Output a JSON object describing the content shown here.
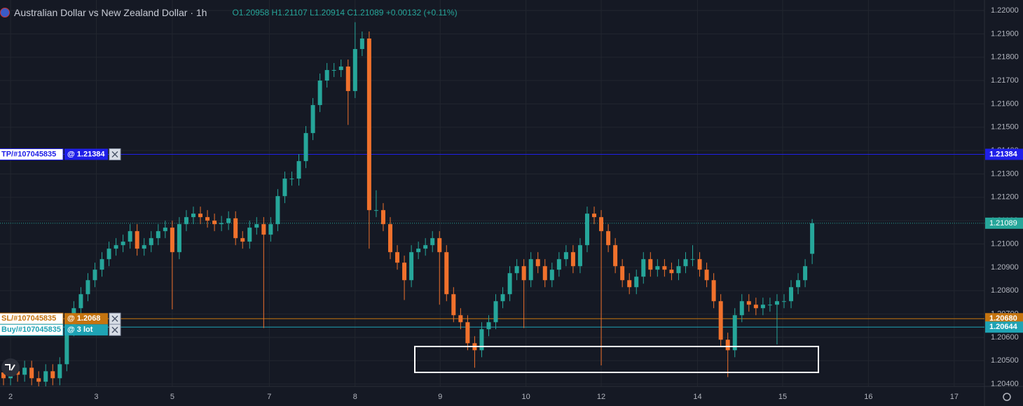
{
  "header": {
    "title": "Australian Dollar vs New Zealand Dollar · 1h",
    "ohlc": "O1.20958 H1.21107 L1.20914 C1.21089 +0.00132 (+0.11%)"
  },
  "chart_data": {
    "type": "candlestick",
    "open": [
      1.2045,
      1.20425,
      1.20455,
      1.2044,
      1.2047,
      1.20425,
      1.2041,
      1.20455,
      1.20425,
      1.20485,
      1.20635,
      1.20725,
      1.20785,
      1.20845,
      1.2089,
      1.20935,
      1.2098,
      1.20995,
      1.2101,
      1.21055,
      1.2098,
      1.20995,
      1.21025,
      1.21055,
      1.2107,
      1.20965,
      1.21085,
      1.21115,
      1.2113,
      1.21115,
      1.211,
      1.21085,
      1.2109,
      1.2111,
      1.21025,
      1.2101,
      1.2107,
      1.21085,
      1.2104,
      1.21085,
      1.21205,
      1.2128,
      1.2128,
      1.21355,
      1.21475,
      1.21595,
      1.217,
      1.21745,
      1.21745,
      1.2176,
      1.21655,
      1.21835,
      1.2188,
      1.21145,
      1.21145,
      1.21085,
      1.20965,
      1.2092,
      1.20845,
      1.20965,
      1.2098,
      1.20995,
      1.21025,
      1.20965,
      1.20785,
      1.20695,
      1.20665,
      1.20575,
      1.20545,
      1.20635,
      1.20665,
      1.20755,
      1.20785,
      1.20875,
      1.20905,
      1.20845,
      1.20935,
      1.20905,
      1.20845,
      1.2089,
      1.20935,
      1.20965,
      1.20905,
      1.20995,
      1.2113,
      1.21115,
      1.21055,
      1.20995,
      1.20905,
      1.20845,
      1.20815,
      1.2086,
      1.20935,
      1.2089,
      1.20905,
      1.2089,
      1.20875,
      1.20905,
      1.20935,
      1.20935,
      1.2089,
      1.20845,
      1.20755,
      1.2059,
      1.20545,
      1.20695,
      1.20755,
      1.2074,
      1.20725,
      1.2074,
      1.2074,
      1.20755,
      1.20755,
      1.20815,
      1.20845,
      1.20958
    ],
    "high": [
      1.2048,
      1.20485,
      1.20485,
      1.205,
      1.205,
      1.20455,
      1.20485,
      1.20485,
      1.20515,
      1.20665,
      1.20755,
      1.20815,
      1.20875,
      1.2092,
      1.20965,
      1.2101,
      1.21025,
      1.2104,
      1.21085,
      1.21085,
      1.21025,
      1.21055,
      1.21085,
      1.211,
      1.211,
      1.21115,
      1.21145,
      1.2116,
      1.2116,
      1.21145,
      1.2113,
      1.2112,
      1.2114,
      1.2114,
      1.21055,
      1.211,
      1.21115,
      1.21115,
      1.21115,
      1.21235,
      1.2131,
      1.2131,
      1.21385,
      1.21505,
      1.21625,
      1.2173,
      1.21775,
      1.21775,
      1.2179,
      1.2179,
      1.2195,
      1.2191,
      1.2191,
      1.2123,
      1.21175,
      1.21115,
      1.20995,
      1.2095,
      1.20995,
      1.2101,
      1.21025,
      1.21055,
      1.21055,
      1.20995,
      1.20815,
      1.20725,
      1.20695,
      1.20605,
      1.20665,
      1.20695,
      1.20785,
      1.20815,
      1.20905,
      1.20935,
      1.20935,
      1.20965,
      1.20965,
      1.20935,
      1.2092,
      1.20965,
      1.20995,
      1.20995,
      1.21025,
      1.2116,
      1.2116,
      1.21145,
      1.21085,
      1.21025,
      1.20935,
      1.20875,
      1.2089,
      1.20965,
      1.20965,
      1.20935,
      1.20935,
      1.2092,
      1.20935,
      1.20965,
      1.20995,
      1.20965,
      1.2092,
      1.20875,
      1.20785,
      1.2062,
      1.20725,
      1.20785,
      1.20785,
      1.2077,
      1.2077,
      1.2077,
      1.20785,
      1.20785,
      1.20845,
      1.20875,
      1.20935,
      1.21107
    ],
    "low": [
      1.20395,
      1.20395,
      1.2041,
      1.2041,
      1.20395,
      1.2039,
      1.2039,
      1.20395,
      1.20395,
      1.20455,
      1.20605,
      1.20695,
      1.20755,
      1.20815,
      1.2086,
      1.20905,
      1.2095,
      1.20965,
      1.2098,
      1.2095,
      1.2095,
      1.20965,
      1.20995,
      1.21025,
      1.2072,
      1.20935,
      1.21055,
      1.21085,
      1.21085,
      1.2107,
      1.21055,
      1.21055,
      1.2106,
      1.20995,
      1.2098,
      1.2098,
      1.2104,
      1.2064,
      1.2101,
      1.21055,
      1.21175,
      1.2125,
      1.2125,
      1.21325,
      1.21445,
      1.21565,
      1.2167,
      1.21715,
      1.21715,
      1.2151,
      1.21625,
      1.21805,
      1.2098,
      1.21115,
      1.21055,
      1.20935,
      1.2089,
      1.2076,
      1.20815,
      1.20935,
      1.2095,
      1.20965,
      1.2074,
      1.20755,
      1.20665,
      1.20635,
      1.20545,
      1.2047,
      1.20515,
      1.20605,
      1.20635,
      1.20725,
      1.20755,
      1.20845,
      1.2064,
      1.20815,
      1.20875,
      1.20815,
      1.20815,
      1.2086,
      1.20905,
      1.20875,
      1.20875,
      1.20965,
      1.21085,
      1.2048,
      1.20965,
      1.20875,
      1.20815,
      1.20785,
      1.20785,
      1.2083,
      1.2086,
      1.2086,
      1.2086,
      1.20845,
      1.20845,
      1.20875,
      1.20905,
      1.2086,
      1.20815,
      1.20725,
      1.2056,
      1.2043,
      1.20515,
      1.20665,
      1.2071,
      1.20695,
      1.20695,
      1.2071,
      1.2057,
      1.20725,
      1.20725,
      1.20785,
      1.20815,
      1.20914
    ],
    "close": [
      1.20425,
      1.20455,
      1.2044,
      1.2047,
      1.20425,
      1.2041,
      1.20455,
      1.20425,
      1.20485,
      1.20635,
      1.20725,
      1.20785,
      1.20845,
      1.2089,
      1.20935,
      1.2098,
      1.20995,
      1.2101,
      1.21055,
      1.2098,
      1.20995,
      1.21025,
      1.21055,
      1.2107,
      1.20965,
      1.21085,
      1.21115,
      1.2113,
      1.21115,
      1.211,
      1.21085,
      1.2109,
      1.2111,
      1.21025,
      1.2101,
      1.2107,
      1.21085,
      1.2104,
      1.21085,
      1.21205,
      1.2128,
      1.2128,
      1.21355,
      1.21475,
      1.21595,
      1.217,
      1.21745,
      1.21745,
      1.2176,
      1.21655,
      1.21835,
      1.2188,
      1.21145,
      1.21145,
      1.21085,
      1.20965,
      1.2092,
      1.20845,
      1.20965,
      1.2098,
      1.20995,
      1.21025,
      1.20965,
      1.20785,
      1.20695,
      1.20665,
      1.20575,
      1.20545,
      1.20635,
      1.20665,
      1.20755,
      1.20785,
      1.20875,
      1.20905,
      1.20845,
      1.20935,
      1.20905,
      1.20845,
      1.2089,
      1.20935,
      1.20965,
      1.20905,
      1.20995,
      1.2113,
      1.21115,
      1.21055,
      1.20995,
      1.20905,
      1.20845,
      1.20815,
      1.2086,
      1.20935,
      1.2089,
      1.20905,
      1.2089,
      1.20875,
      1.20905,
      1.20935,
      1.20935,
      1.2089,
      1.20845,
      1.20755,
      1.2059,
      1.20545,
      1.20695,
      1.20755,
      1.2074,
      1.20725,
      1.2074,
      1.2074,
      1.20755,
      1.20755,
      1.20815,
      1.20845,
      1.20905,
      1.21089
    ],
    "up_color": "#26a69a",
    "down_color": "#f0712c",
    "xlim": [
      -0.5,
      139.5
    ],
    "ylim": [
      1.2039,
      1.22045
    ],
    "xticks": [
      {
        "value": 1,
        "label": "2"
      },
      {
        "value": 13.2,
        "label": "3"
      },
      {
        "value": 24,
        "label": "5"
      },
      {
        "value": 37.8,
        "label": "7"
      },
      {
        "value": 50,
        "label": "8"
      },
      {
        "value": 62.1,
        "label": "9"
      },
      {
        "value": 74.3,
        "label": "10"
      },
      {
        "value": 85,
        "label": "12"
      },
      {
        "value": 98.7,
        "label": "14"
      },
      {
        "value": 110.8,
        "label": "15"
      },
      {
        "value": 123,
        "label": "16"
      },
      {
        "value": 135.2,
        "label": "17"
      }
    ],
    "yticks": [
      {
        "value": 1.204,
        "label": "1.20400"
      },
      {
        "value": 1.205,
        "label": "1.20500"
      },
      {
        "value": 1.206,
        "label": "1.20600"
      },
      {
        "value": 1.207,
        "label": "1.20700"
      },
      {
        "value": 1.208,
        "label": "1.20800"
      },
      {
        "value": 1.209,
        "label": "1.20900"
      },
      {
        "value": 1.21,
        "label": "1.21000"
      },
      {
        "value": 1.211,
        "label": "1.21100"
      },
      {
        "value": 1.212,
        "label": "1.21200"
      },
      {
        "value": 1.213,
        "label": "1.21300"
      },
      {
        "value": 1.214,
        "label": "1.21400"
      },
      {
        "value": 1.215,
        "label": "1.21500"
      },
      {
        "value": 1.216,
        "label": "1.21600"
      },
      {
        "value": 1.217,
        "label": "1.21700"
      },
      {
        "value": 1.218,
        "label": "1.21800"
      },
      {
        "value": 1.219,
        "label": "1.21900"
      },
      {
        "value": 1.22,
        "label": "1.22000"
      }
    ],
    "grid": true,
    "levels": [
      {
        "name": "TP/#107045835",
        "tag": "@ 1.21384",
        "value": 1.21384,
        "label": "1.21384",
        "color": "#1f1fe8"
      },
      {
        "name": "SL/#107045835",
        "tag": "@ 1.2068",
        "value": 1.2068,
        "label": "1.20680",
        "color": "#c5740f"
      },
      {
        "name": "Buy/#107045835",
        "tag": "@ 3 lot",
        "value": 1.20644,
        "label": "1.20644",
        "color": "#1fa3b4"
      }
    ],
    "last_price": {
      "value": 1.21089,
      "label": "1.21089",
      "color": "#26a69a"
    }
  }
}
